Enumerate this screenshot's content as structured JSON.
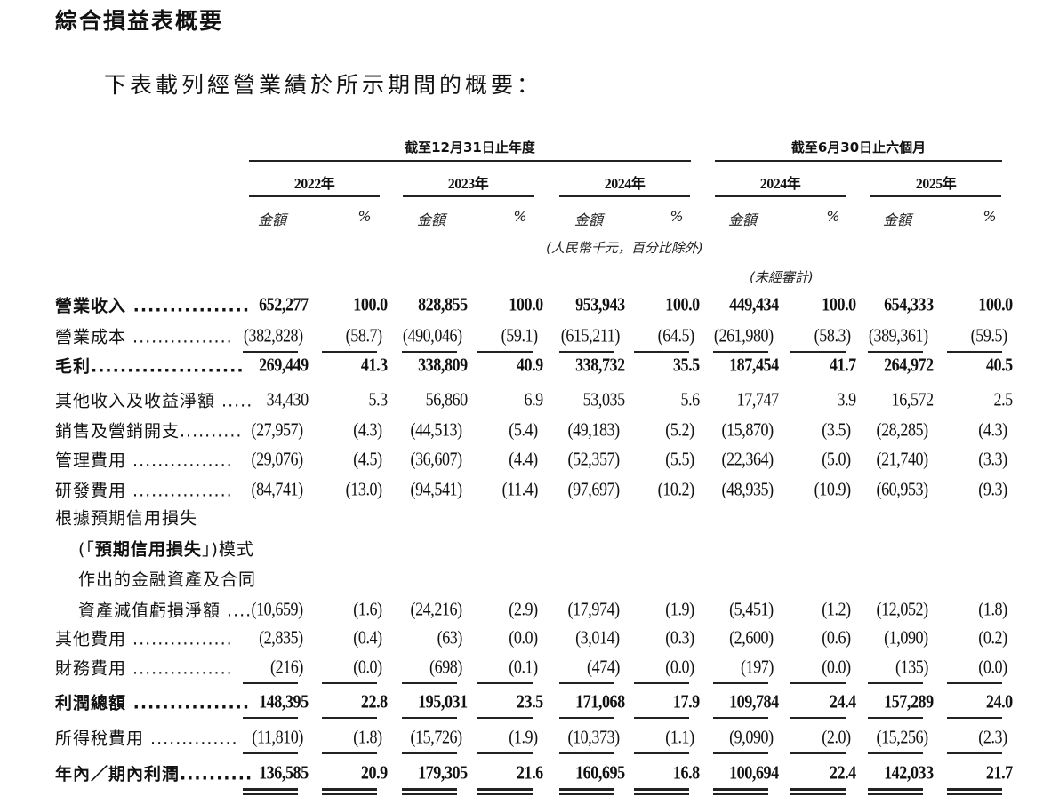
{
  "title": "綜合損益表概要",
  "intro": "下表載列經營業績於所示期間的概要：",
  "header": {
    "group_annual": "截至12月31日止年度",
    "group_interim": "截至6月30日止六個月",
    "years": [
      "2022年",
      "2023年",
      "2024年",
      "2024年",
      "2025年"
    ],
    "amount_label": "金額",
    "percent_label": "%",
    "unit_note": "(人民幣千元，百分比除外)",
    "unaudited_note": "(未經審計)"
  },
  "rows": [
    {
      "label": [
        "營業收入 ................"
      ],
      "bold": true,
      "values": [
        "652,277",
        "100.0",
        "828,855",
        "100.0",
        "953,943",
        "100.0",
        "449,434",
        "100.0",
        "654,333",
        "100.0"
      ]
    },
    {
      "label": [
        "營業成本 ................"
      ],
      "bold": false,
      "rule_below": "single",
      "values": [
        "(382,828)",
        "(58.7)",
        "(490,046)",
        "(59.1)",
        "(615,211)",
        "(64.5)",
        "(261,980)",
        "(58.3)",
        "(389,361)",
        "(59.5)"
      ]
    },
    {
      "label": [
        "毛利....................."
      ],
      "bold": true,
      "values": [
        "269,449",
        "41.3",
        "338,809",
        "40.9",
        "338,732",
        "35.5",
        "187,454",
        "41.7",
        "264,972",
        "40.5"
      ]
    },
    {
      "label": [
        "其他收入及收益淨額 ....."
      ],
      "bold": false,
      "values": [
        "34,430",
        "5.3",
        "56,860",
        "6.9",
        "53,035",
        "5.6",
        "17,747",
        "3.9",
        "16,572",
        "2.5"
      ]
    },
    {
      "label": [
        "銷售及營銷開支.........."
      ],
      "bold": false,
      "values": [
        "(27,957)",
        "(4.3)",
        "(44,513)",
        "(5.4)",
        "(49,183)",
        "(5.2)",
        "(15,870)",
        "(3.5)",
        "(28,285)",
        "(4.3)"
      ]
    },
    {
      "label": [
        "管理費用 ................"
      ],
      "bold": false,
      "values": [
        "(29,076)",
        "(4.5)",
        "(36,607)",
        "(4.4)",
        "(52,357)",
        "(5.5)",
        "(22,364)",
        "(5.0)",
        "(21,740)",
        "(3.3)"
      ]
    },
    {
      "label": [
        "研發費用 ................"
      ],
      "bold": false,
      "values": [
        "(84,741)",
        "(13.0)",
        "(94,541)",
        "(11.4)",
        "(97,697)",
        "(10.2)",
        "(48,935)",
        "(10.9)",
        "(60,953)",
        "(9.3)"
      ]
    },
    {
      "label": [
        "根據預期信用損失",
        "(「預期信用損失」)模式",
        "作出的金融資產及合同",
        "資產減值虧損淨額 ...."
      ],
      "bold": false,
      "values": [
        "(10,659)",
        "(1.6)",
        "(24,216)",
        "(2.9)",
        "(17,974)",
        "(1.9)",
        "(5,451)",
        "(1.2)",
        "(12,052)",
        "(1.8)"
      ]
    },
    {
      "label": [
        "其他費用 ................"
      ],
      "bold": false,
      "values": [
        "(2,835)",
        "(0.4)",
        "(63)",
        "(0.0)",
        "(3,014)",
        "(0.3)",
        "(2,600)",
        "(0.6)",
        "(1,090)",
        "(0.2)"
      ]
    },
    {
      "label": [
        "財務費用 ................"
      ],
      "bold": false,
      "rule_below": "single",
      "values": [
        "(216)",
        "(0.0)",
        "(698)",
        "(0.1)",
        "(474)",
        "(0.0)",
        "(197)",
        "(0.0)",
        "(135)",
        "(0.0)"
      ]
    },
    {
      "label": [
        "利潤總額 ................"
      ],
      "bold": true,
      "rule_below": "single",
      "values": [
        "148,395",
        "22.8",
        "195,031",
        "23.5",
        "171,068",
        "17.9",
        "109,784",
        "24.4",
        "157,289",
        "24.0"
      ]
    },
    {
      "label": [
        "所得稅費用 .............."
      ],
      "bold": false,
      "rule_below": "single",
      "values": [
        "(11,810)",
        "(1.8)",
        "(15,726)",
        "(1.9)",
        "(10,373)",
        "(1.1)",
        "(9,090)",
        "(2.0)",
        "(15,256)",
        "(2.3)"
      ]
    },
    {
      "label": [
        "年內／期內利潤.........."
      ],
      "bold": true,
      "rule_below": "double",
      "values": [
        "136,585",
        "20.9",
        "179,305",
        "21.6",
        "160,695",
        "16.8",
        "100,694",
        "22.4",
        "142,033",
        "21.7"
      ]
    }
  ]
}
